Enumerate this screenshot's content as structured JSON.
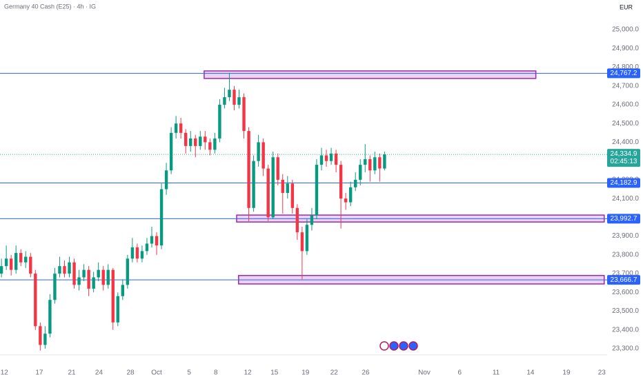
{
  "chart_data": {
    "type": "candlestick",
    "title": "Germany 40 Cash (E25) · 4h · IG",
    "currency": "EUR",
    "up_color": "#089981",
    "down_color": "#f23645",
    "grid": false,
    "x": [
      0,
      1,
      2,
      3,
      4,
      5,
      6,
      7,
      8,
      9,
      10,
      11,
      12,
      13,
      14,
      15,
      16,
      17,
      18,
      19,
      20,
      21,
      22,
      23,
      24,
      25,
      26,
      27,
      28,
      29,
      30,
      31,
      32,
      33,
      34,
      35,
      36,
      37,
      38,
      39,
      40,
      41,
      42,
      43,
      44,
      45,
      46,
      47,
      48,
      49,
      50,
      51,
      52,
      53,
      54,
      55,
      56,
      57,
      58,
      59,
      60,
      61,
      62,
      63,
      64,
      65,
      66,
      67,
      68,
      69,
      70,
      71,
      72,
      73,
      74,
      75,
      76,
      77,
      78,
      79
    ],
    "open": [
      23700,
      23740,
      23780,
      23720,
      23810,
      23760,
      23790,
      23700,
      23420,
      23320,
      23380,
      23560,
      23700,
      23740,
      23700,
      23760,
      23640,
      23680,
      23720,
      23620,
      23680,
      23720,
      23640,
      23720,
      23440,
      23580,
      23640,
      23780,
      23840,
      23780,
      23820,
      23860,
      23900,
      23850,
      24150,
      24250,
      24450,
      24500,
      24450,
      24380,
      24420,
      24380,
      24430,
      24400,
      24360,
      24420,
      24600,
      24640,
      24680,
      24600,
      24640,
      24460,
      24050,
      24300,
      24400,
      24260,
      24000,
      24320,
      24200,
      24130,
      24180,
      24050,
      23920,
      23820,
      23960,
      24010,
      24280,
      24330,
      24300,
      24340,
      24280,
      24100,
      24080,
      24160,
      24200,
      24280,
      24310,
      24250,
      24320,
      24260
    ],
    "high": [
      23780,
      23850,
      23800,
      23850,
      23830,
      23820,
      23810,
      23720,
      23440,
      23420,
      23590,
      23730,
      23790,
      23770,
      23790,
      23780,
      23720,
      23750,
      23740,
      23710,
      23760,
      23740,
      23750,
      23730,
      23600,
      23670,
      23800,
      23890,
      23860,
      23850,
      23890,
      23950,
      23920,
      24180,
      24290,
      24480,
      24540,
      24530,
      24470,
      24460,
      24440,
      24460,
      24460,
      24420,
      24450,
      24630,
      24690,
      24770,
      24700,
      24680,
      24660,
      24480,
      24330,
      24440,
      24420,
      24280,
      24350,
      24340,
      24230,
      24220,
      24200,
      24070,
      23950,
      23990,
      24050,
      24310,
      24370,
      24360,
      24370,
      24360,
      24300,
      24130,
      24190,
      24240,
      24310,
      24390,
      24330,
      24350,
      24340,
      24350
    ],
    "low": [
      23680,
      23720,
      23690,
      23700,
      23740,
      23730,
      23680,
      23400,
      23290,
      23300,
      23360,
      23540,
      23680,
      23680,
      23680,
      23620,
      23610,
      23660,
      23580,
      23600,
      23660,
      23610,
      23620,
      23400,
      23420,
      23560,
      23620,
      23760,
      23760,
      23760,
      23800,
      23840,
      23800,
      23830,
      24120,
      24230,
      24420,
      24420,
      24340,
      24350,
      24320,
      24360,
      24360,
      24330,
      24340,
      24400,
      24580,
      24620,
      24570,
      24580,
      24420,
      23980,
      24030,
      24270,
      24220,
      23980,
      23990,
      24170,
      24020,
      24100,
      24020,
      23880,
      23670,
      23800,
      23930,
      23990,
      24250,
      24270,
      24280,
      24240,
      23940,
      24040,
      24060,
      24140,
      24170,
      24240,
      24190,
      24230,
      24190,
      24250
    ],
    "close": [
      23740,
      23780,
      23720,
      23810,
      23760,
      23790,
      23700,
      23420,
      23320,
      23380,
      23560,
      23700,
      23740,
      23700,
      23760,
      23640,
      23680,
      23720,
      23620,
      23680,
      23720,
      23640,
      23720,
      23440,
      23580,
      23640,
      23780,
      23840,
      23780,
      23820,
      23860,
      23900,
      23850,
      24150,
      24250,
      24450,
      24500,
      24450,
      24380,
      24420,
      24380,
      24430,
      24400,
      24360,
      24420,
      24600,
      24640,
      24680,
      24600,
      24640,
      24460,
      24050,
      24300,
      24400,
      24260,
      24000,
      24320,
      24200,
      24130,
      24180,
      24050,
      23920,
      23820,
      23960,
      24010,
      24280,
      24330,
      24300,
      24340,
      24280,
      24100,
      24080,
      24160,
      24200,
      24280,
      24310,
      24250,
      24320,
      24260,
      24334.9
    ],
    "xlim": [
      -0.3,
      124.9
    ],
    "xticks": [
      {
        "value": 0.6,
        "label": "12"
      },
      {
        "value": 7.8,
        "label": "17"
      },
      {
        "value": 14.5,
        "label": "21"
      },
      {
        "value": 20.1,
        "label": "24"
      },
      {
        "value": 26.6,
        "label": "28"
      },
      {
        "value": 32,
        "label": "Oct"
      },
      {
        "value": 38.7,
        "label": "5"
      },
      {
        "value": 44.2,
        "label": "8"
      },
      {
        "value": 50.8,
        "label": "12"
      },
      {
        "value": 56.3,
        "label": "15"
      },
      {
        "value": 62.7,
        "label": "19"
      },
      {
        "value": 68.6,
        "label": "22"
      },
      {
        "value": 75.1,
        "label": "26"
      },
      {
        "value": 87.2,
        "label": "Nov"
      },
      {
        "value": 94.5,
        "label": "6"
      },
      {
        "value": 102,
        "label": "11"
      },
      {
        "value": 109.1,
        "label": "14"
      },
      {
        "value": 116.5,
        "label": "19"
      },
      {
        "value": 123.8,
        "label": "23"
      }
    ],
    "ylim": [
      23267,
      25158
    ],
    "yticks": [
      {
        "value": 23300,
        "label": "23,300.0"
      },
      {
        "value": 23400,
        "label": "23,400.0"
      },
      {
        "value": 23500,
        "label": "23,500.0"
      },
      {
        "value": 23600,
        "label": "23,600.0"
      },
      {
        "value": 23700,
        "label": "23,700.0"
      },
      {
        "value": 23800,
        "label": "23,800.0"
      },
      {
        "value": 23900,
        "label": "23,900.0"
      },
      {
        "value": 24000,
        "label": "24,000.0"
      },
      {
        "value": 24100,
        "label": "24,100.0"
      },
      {
        "value": 24200,
        "label": "24,200.0"
      },
      {
        "value": 24300,
        "label": "24,300.0"
      },
      {
        "value": 24400,
        "label": "24,400.0"
      },
      {
        "value": 24500,
        "label": "24,500.0"
      },
      {
        "value": 24600,
        "label": "24,600.0"
      },
      {
        "value": 24700,
        "label": "24,700.0"
      },
      {
        "value": 24800,
        "label": "24,800.0"
      },
      {
        "value": 24900,
        "label": "24,900.0"
      },
      {
        "value": 25000,
        "label": "25,000.0"
      }
    ],
    "levels": [
      {
        "value": 24767.2,
        "label": "24,767.2"
      },
      {
        "value": 24182.9,
        "label": "24,182.9"
      },
      {
        "value": 23992.7,
        "label": "23,992.7"
      },
      {
        "value": 23666.7,
        "label": "23,666.7"
      }
    ],
    "level_color": "#2962ff",
    "zones": [
      {
        "x": [
          41.8,
          110.2
        ],
        "y": [
          24740,
          24780
        ]
      },
      {
        "x": [
          48.5,
          124.3
        ],
        "y": [
          23975,
          24012
        ]
      },
      {
        "x": [
          48.9,
          124.3
        ],
        "y": [
          23645,
          23690
        ]
      }
    ],
    "zone_color": "#9c27b0",
    "last_price": {
      "value": 24334.9,
      "label": "24,334.9",
      "countdown": "02:45:13",
      "color": "#26a69a"
    }
  }
}
